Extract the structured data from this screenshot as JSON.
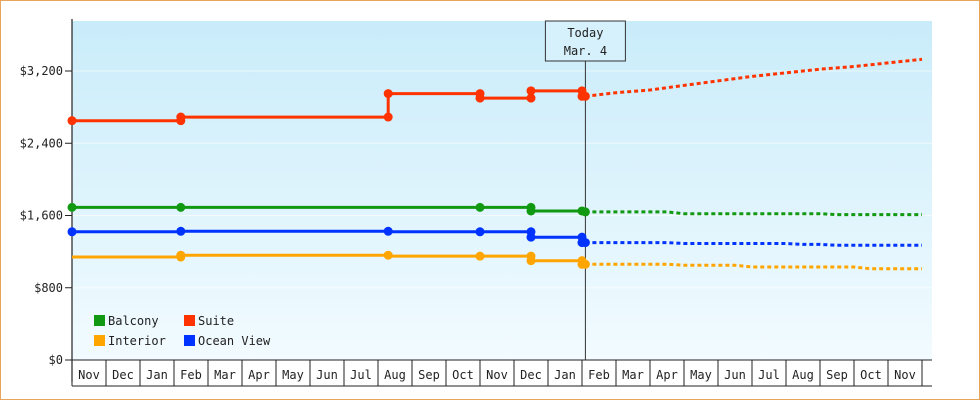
{
  "chart_data": {
    "type": "line",
    "y_ticks": [
      {
        "value": 0,
        "label": "$0"
      },
      {
        "value": 800,
        "label": "$800"
      },
      {
        "value": 1600,
        "label": "$1,600"
      },
      {
        "value": 2400,
        "label": "$2,400"
      },
      {
        "value": 3200,
        "label": "$3,200"
      }
    ],
    "ylim": [
      0,
      3200
    ],
    "x_months": [
      "Nov",
      "Dec",
      "Jan",
      "Feb",
      "Mar",
      "Apr",
      "May",
      "Jun",
      "Jul",
      "Aug",
      "Sep",
      "Oct",
      "Nov",
      "Dec",
      "Jan",
      "Feb",
      "Mar",
      "Apr",
      "May",
      "Jun",
      "Jul",
      "Aug",
      "Sep",
      "Oct",
      "Nov"
    ],
    "today_marker": {
      "line1": "Today",
      "line2": "Mar. 4",
      "x": 15.1
    },
    "x_end": 25.0,
    "series": [
      {
        "name": "Suite",
        "color": "#ff3300",
        "actual": [
          [
            0,
            2650
          ],
          [
            3.2,
            2650
          ],
          [
            3.2,
            2690
          ],
          [
            9.3,
            2690
          ],
          [
            9.3,
            2950
          ],
          [
            12.0,
            2950
          ],
          [
            12.0,
            2900
          ],
          [
            13.5,
            2900
          ],
          [
            13.5,
            2980
          ],
          [
            15.0,
            2980
          ],
          [
            15.0,
            2920
          ],
          [
            15.1,
            2920
          ]
        ],
        "markers": [
          [
            0,
            2650
          ],
          [
            3.2,
            2650
          ],
          [
            3.2,
            2690
          ],
          [
            9.3,
            2690
          ],
          [
            9.3,
            2950
          ],
          [
            12.0,
            2950
          ],
          [
            12.0,
            2900
          ],
          [
            13.5,
            2900
          ],
          [
            13.5,
            2980
          ],
          [
            15.0,
            2980
          ],
          [
            15.0,
            2920
          ],
          [
            15.1,
            2920
          ]
        ],
        "forecast": [
          [
            15.1,
            2920
          ],
          [
            16,
            2960
          ],
          [
            17,
            2990
          ],
          [
            18,
            3040
          ],
          [
            19,
            3090
          ],
          [
            20,
            3140
          ],
          [
            21,
            3180
          ],
          [
            22,
            3220
          ],
          [
            23,
            3250
          ],
          [
            24,
            3290
          ],
          [
            25,
            3330
          ]
        ]
      },
      {
        "name": "Balcony",
        "color": "#119911",
        "actual": [
          [
            0,
            1690
          ],
          [
            13.5,
            1690
          ],
          [
            13.5,
            1650
          ],
          [
            15.0,
            1650
          ],
          [
            15.1,
            1640
          ]
        ],
        "markers": [
          [
            0,
            1690
          ],
          [
            3.2,
            1690
          ],
          [
            12.0,
            1690
          ],
          [
            13.5,
            1690
          ],
          [
            13.5,
            1650
          ],
          [
            15.0,
            1650
          ],
          [
            15.1,
            1640
          ]
        ],
        "forecast": [
          [
            15.1,
            1640
          ],
          [
            17.5,
            1640
          ],
          [
            18,
            1620
          ],
          [
            22,
            1620
          ],
          [
            22.5,
            1610
          ],
          [
            25,
            1610
          ]
        ]
      },
      {
        "name": "Ocean View",
        "color": "#0033ff",
        "actual": [
          [
            0,
            1420
          ],
          [
            3.2,
            1420
          ],
          [
            3.2,
            1425
          ],
          [
            9.3,
            1425
          ],
          [
            9.3,
            1420
          ],
          [
            13.5,
            1420
          ],
          [
            13.5,
            1360
          ],
          [
            15.0,
            1360
          ],
          [
            15.0,
            1300
          ],
          [
            15.1,
            1300
          ]
        ],
        "markers": [
          [
            0,
            1420
          ],
          [
            3.2,
            1425
          ],
          [
            9.3,
            1425
          ],
          [
            12.0,
            1420
          ],
          [
            13.5,
            1420
          ],
          [
            13.5,
            1360
          ],
          [
            15.0,
            1360
          ],
          [
            15.0,
            1300
          ],
          [
            15.1,
            1300
          ]
        ],
        "forecast": [
          [
            15.1,
            1300
          ],
          [
            17.5,
            1300
          ],
          [
            18,
            1290
          ],
          [
            21,
            1290
          ],
          [
            21.5,
            1280
          ],
          [
            22,
            1280
          ],
          [
            22.5,
            1270
          ],
          [
            25,
            1270
          ]
        ]
      },
      {
        "name": "Interior",
        "color": "#ffa500",
        "actual": [
          [
            0,
            1140
          ],
          [
            3.2,
            1140
          ],
          [
            3.2,
            1160
          ],
          [
            9.3,
            1160
          ],
          [
            9.3,
            1150
          ],
          [
            13.5,
            1150
          ],
          [
            13.5,
            1100
          ],
          [
            15.0,
            1100
          ],
          [
            15.0,
            1060
          ],
          [
            15.1,
            1060
          ]
        ],
        "markers": [
          [
            3.2,
            1140
          ],
          [
            3.2,
            1160
          ],
          [
            9.3,
            1160
          ],
          [
            12.0,
            1150
          ],
          [
            13.5,
            1150
          ],
          [
            13.5,
            1100
          ],
          [
            15.0,
            1100
          ],
          [
            15.0,
            1060
          ],
          [
            15.1,
            1060
          ]
        ],
        "forecast": [
          [
            15.1,
            1060
          ],
          [
            17.5,
            1060
          ],
          [
            18,
            1050
          ],
          [
            19.5,
            1050
          ],
          [
            20,
            1030
          ],
          [
            23,
            1030
          ],
          [
            23.5,
            1010
          ],
          [
            25,
            1010
          ]
        ]
      }
    ],
    "legend": [
      {
        "name": "Balcony",
        "color": "#119911"
      },
      {
        "name": "Suite",
        "color": "#ff3300"
      },
      {
        "name": "Interior",
        "color": "#ffa500"
      },
      {
        "name": "Ocean View",
        "color": "#0033ff"
      }
    ],
    "legend_placement": "bottom-left"
  }
}
